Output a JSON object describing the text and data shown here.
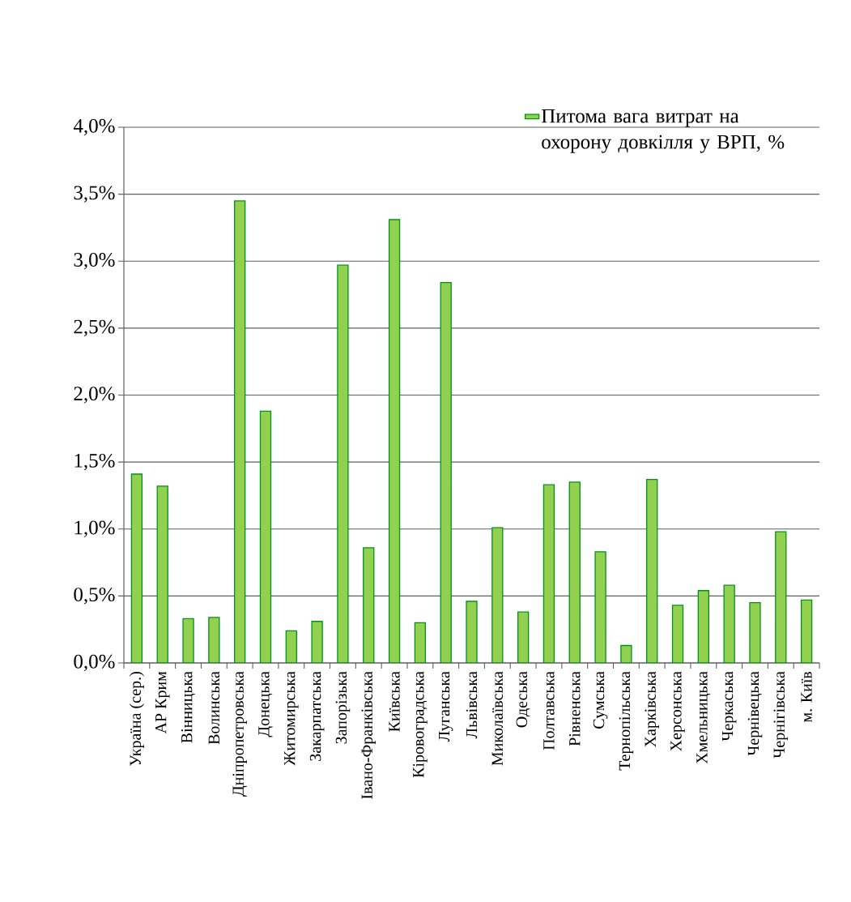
{
  "chart_data": {
    "type": "bar",
    "categories": [
      "Україна (сер.)",
      "АР Крим",
      "Вінницька",
      "Волинська",
      "Дніпропетровська",
      "Донецька",
      "Житомирська",
      "Закарпатська",
      "Запорізька",
      "Івано-Франківська",
      "Київська",
      "Кіровоградська",
      "Луганська",
      "Львівська",
      "Миколаївська",
      "Одеська",
      "Полтавська",
      "Рівненська",
      "Сумська",
      "Тернопільська",
      "Харківська",
      "Херсонська",
      "Хмельницька",
      "Черкаська",
      "Чернівецька",
      "Чернігівська",
      "м. Київ"
    ],
    "series": [
      {
        "name": "Питома вага витрат на охорону довкілля у ВРП, %",
        "color": "#92d050",
        "values": [
          1.41,
          1.32,
          0.33,
          0.34,
          3.45,
          1.88,
          0.24,
          0.31,
          2.97,
          0.86,
          3.31,
          0.3,
          2.84,
          0.46,
          1.01,
          0.38,
          1.33,
          1.35,
          0.83,
          0.13,
          1.37,
          0.43,
          0.54,
          0.58,
          0.45,
          0.98,
          0.47
        ]
      }
    ],
    "ylim": [
      0,
      4
    ],
    "yticks": [
      {
        "value": 0,
        "label": "0,0%"
      },
      {
        "value": 0.5,
        "label": "0,5%"
      },
      {
        "value": 1,
        "label": "1,0%"
      },
      {
        "value": 1.5,
        "label": "1,5%"
      },
      {
        "value": 2,
        "label": "2,0%"
      },
      {
        "value": 2.5,
        "label": "2,5%"
      },
      {
        "value": 3,
        "label": "3,0%"
      },
      {
        "value": 3.5,
        "label": "3,5%"
      },
      {
        "value": 4,
        "label": "4,0%"
      }
    ],
    "grid": "y",
    "legend": "top right"
  }
}
